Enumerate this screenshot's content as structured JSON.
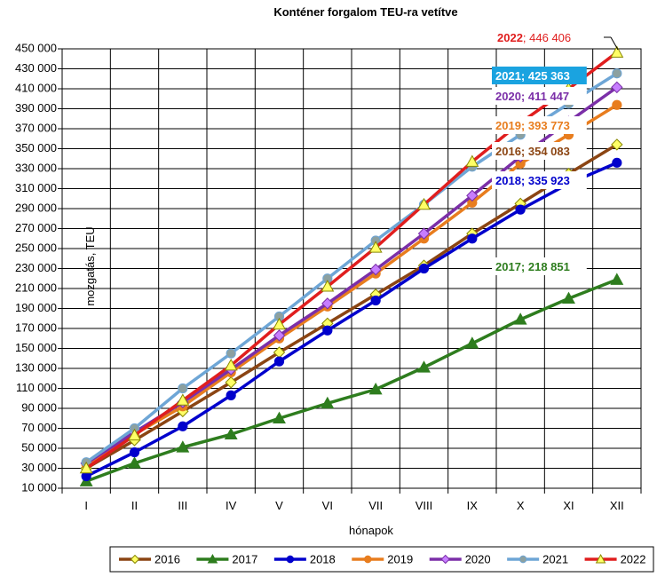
{
  "chart_data": {
    "type": "line",
    "title": "Konténer forgalom TEU-ra vetítve",
    "xlabel": "hónapok",
    "ylabel": "mozgatás, TEU",
    "categories": [
      "I",
      "II",
      "III",
      "IV",
      "V",
      "VI",
      "VII",
      "VIII",
      "IX",
      "X",
      "XI",
      "XII"
    ],
    "ylim": [
      10000,
      450000
    ],
    "yticks": [
      10000,
      30000,
      50000,
      70000,
      90000,
      110000,
      130000,
      150000,
      170000,
      190000,
      210000,
      230000,
      250000,
      270000,
      290000,
      310000,
      330000,
      350000,
      370000,
      390000,
      410000,
      430000,
      450000
    ],
    "ytick_labels": [
      "10 000",
      "30 000",
      "50 000",
      "70 000",
      "90 000",
      "110 000",
      "130 000",
      "150 000",
      "170 000",
      "190 000",
      "210 000",
      "230 000",
      "250 000",
      "270 000",
      "290 000",
      "310 000",
      "330 000",
      "350 000",
      "370 000",
      "390 000",
      "410 000",
      "430 000",
      "450 000"
    ],
    "grid": true,
    "legend_position": "bottom",
    "series": [
      {
        "name": "2016",
        "color": "#8B4513",
        "marker": "diamond",
        "marker_fill": "#FFFF66",
        "values": [
          30000,
          58000,
          87000,
          116000,
          146000,
          175000,
          204000,
          233000,
          265000,
          295000,
          325000,
          354083
        ],
        "end_label": "2016; 354 083",
        "label_bg": "#ffffff",
        "label_color": "#8B4513"
      },
      {
        "name": "2017",
        "color": "#2E7D1E",
        "marker": "triangle",
        "marker_fill": "#2E7D1E",
        "values": [
          17000,
          35000,
          51000,
          64000,
          80000,
          95000,
          109000,
          131000,
          155000,
          179000,
          200000,
          218851
        ],
        "end_label": "2017; 218 851",
        "label_bg": "#ffffff",
        "label_color": "#2E7D1E"
      },
      {
        "name": "2018",
        "color": "#0000CC",
        "marker": "circle",
        "marker_fill": "#0000CC",
        "values": [
          22000,
          46000,
          72000,
          103000,
          137000,
          168000,
          198000,
          230000,
          260000,
          289000,
          315000,
          335923
        ],
        "end_label": "2018; 335 923",
        "label_bg": "#ffffff",
        "label_color": "#0000CC"
      },
      {
        "name": "2019",
        "color": "#E87D1E",
        "marker": "circle",
        "marker_fill": "#E87D1E",
        "values": [
          34000,
          64000,
          92000,
          126000,
          160000,
          192000,
          225000,
          260000,
          296000,
          335000,
          364000,
          393773
        ],
        "end_label": "2019; 393 773",
        "label_bg": "#ffffff",
        "label_color": "#E87D1E"
      },
      {
        "name": "2020",
        "color": "#7B2FA8",
        "marker": "diamond",
        "marker_fill": "#C77DFF",
        "values": [
          35000,
          66000,
          96000,
          129000,
          163000,
          195000,
          229000,
          265000,
          303000,
          342000,
          377000,
          411447
        ],
        "end_label": "2020; 411 447",
        "label_bg": "#ffffff",
        "label_color": "#7B2FA8"
      },
      {
        "name": "2021",
        "color": "#6EA6D6",
        "marker": "circle",
        "marker_fill": "#8CA0A0",
        "values": [
          36000,
          70000,
          110000,
          145000,
          182000,
          220000,
          258000,
          294000,
          332000,
          364000,
          395000,
          425363
        ],
        "end_label": "2021; 425 363",
        "label_bg": "#1AA3E0",
        "label_color": "#ffffff"
      },
      {
        "name": "2022",
        "color": "#E01E1E",
        "marker": "triangle",
        "marker_fill": "#FFFF66",
        "values": [
          30000,
          63000,
          98000,
          133000,
          174000,
          212000,
          251000,
          294000,
          337000,
          376000,
          410000,
          446406
        ],
        "end_label_year": "2022",
        "end_label_value": "; 446 406",
        "label_bg": "#ffffff",
        "label_color": "#E01E1E"
      }
    ]
  }
}
